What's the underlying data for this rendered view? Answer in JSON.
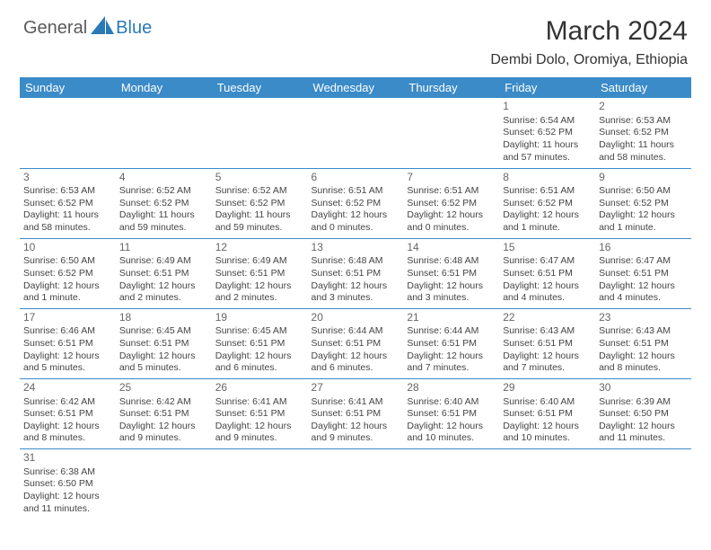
{
  "brand": {
    "part1": "General",
    "part2": "Blue"
  },
  "title": "March 2024",
  "location": "Dembi Dolo, Oromiya, Ethiopia",
  "colors": {
    "header_bg": "#3b8bc8",
    "header_text": "#ffffff",
    "border": "#3b8bc8",
    "body_text": "#444444",
    "daynum": "#666666",
    "brand_gray": "#5a5a5a",
    "brand_blue": "#2a7ab8"
  },
  "day_headers": [
    "Sunday",
    "Monday",
    "Tuesday",
    "Wednesday",
    "Thursday",
    "Friday",
    "Saturday"
  ],
  "weeks": [
    [
      null,
      null,
      null,
      null,
      null,
      {
        "n": "1",
        "sr": "Sunrise: 6:54 AM",
        "ss": "Sunset: 6:52 PM",
        "d1": "Daylight: 11 hours",
        "d2": "and 57 minutes."
      },
      {
        "n": "2",
        "sr": "Sunrise: 6:53 AM",
        "ss": "Sunset: 6:52 PM",
        "d1": "Daylight: 11 hours",
        "d2": "and 58 minutes."
      }
    ],
    [
      {
        "n": "3",
        "sr": "Sunrise: 6:53 AM",
        "ss": "Sunset: 6:52 PM",
        "d1": "Daylight: 11 hours",
        "d2": "and 58 minutes."
      },
      {
        "n": "4",
        "sr": "Sunrise: 6:52 AM",
        "ss": "Sunset: 6:52 PM",
        "d1": "Daylight: 11 hours",
        "d2": "and 59 minutes."
      },
      {
        "n": "5",
        "sr": "Sunrise: 6:52 AM",
        "ss": "Sunset: 6:52 PM",
        "d1": "Daylight: 11 hours",
        "d2": "and 59 minutes."
      },
      {
        "n": "6",
        "sr": "Sunrise: 6:51 AM",
        "ss": "Sunset: 6:52 PM",
        "d1": "Daylight: 12 hours",
        "d2": "and 0 minutes."
      },
      {
        "n": "7",
        "sr": "Sunrise: 6:51 AM",
        "ss": "Sunset: 6:52 PM",
        "d1": "Daylight: 12 hours",
        "d2": "and 0 minutes."
      },
      {
        "n": "8",
        "sr": "Sunrise: 6:51 AM",
        "ss": "Sunset: 6:52 PM",
        "d1": "Daylight: 12 hours",
        "d2": "and 1 minute."
      },
      {
        "n": "9",
        "sr": "Sunrise: 6:50 AM",
        "ss": "Sunset: 6:52 PM",
        "d1": "Daylight: 12 hours",
        "d2": "and 1 minute."
      }
    ],
    [
      {
        "n": "10",
        "sr": "Sunrise: 6:50 AM",
        "ss": "Sunset: 6:52 PM",
        "d1": "Daylight: 12 hours",
        "d2": "and 1 minute."
      },
      {
        "n": "11",
        "sr": "Sunrise: 6:49 AM",
        "ss": "Sunset: 6:51 PM",
        "d1": "Daylight: 12 hours",
        "d2": "and 2 minutes."
      },
      {
        "n": "12",
        "sr": "Sunrise: 6:49 AM",
        "ss": "Sunset: 6:51 PM",
        "d1": "Daylight: 12 hours",
        "d2": "and 2 minutes."
      },
      {
        "n": "13",
        "sr": "Sunrise: 6:48 AM",
        "ss": "Sunset: 6:51 PM",
        "d1": "Daylight: 12 hours",
        "d2": "and 3 minutes."
      },
      {
        "n": "14",
        "sr": "Sunrise: 6:48 AM",
        "ss": "Sunset: 6:51 PM",
        "d1": "Daylight: 12 hours",
        "d2": "and 3 minutes."
      },
      {
        "n": "15",
        "sr": "Sunrise: 6:47 AM",
        "ss": "Sunset: 6:51 PM",
        "d1": "Daylight: 12 hours",
        "d2": "and 4 minutes."
      },
      {
        "n": "16",
        "sr": "Sunrise: 6:47 AM",
        "ss": "Sunset: 6:51 PM",
        "d1": "Daylight: 12 hours",
        "d2": "and 4 minutes."
      }
    ],
    [
      {
        "n": "17",
        "sr": "Sunrise: 6:46 AM",
        "ss": "Sunset: 6:51 PM",
        "d1": "Daylight: 12 hours",
        "d2": "and 5 minutes."
      },
      {
        "n": "18",
        "sr": "Sunrise: 6:45 AM",
        "ss": "Sunset: 6:51 PM",
        "d1": "Daylight: 12 hours",
        "d2": "and 5 minutes."
      },
      {
        "n": "19",
        "sr": "Sunrise: 6:45 AM",
        "ss": "Sunset: 6:51 PM",
        "d1": "Daylight: 12 hours",
        "d2": "and 6 minutes."
      },
      {
        "n": "20",
        "sr": "Sunrise: 6:44 AM",
        "ss": "Sunset: 6:51 PM",
        "d1": "Daylight: 12 hours",
        "d2": "and 6 minutes."
      },
      {
        "n": "21",
        "sr": "Sunrise: 6:44 AM",
        "ss": "Sunset: 6:51 PM",
        "d1": "Daylight: 12 hours",
        "d2": "and 7 minutes."
      },
      {
        "n": "22",
        "sr": "Sunrise: 6:43 AM",
        "ss": "Sunset: 6:51 PM",
        "d1": "Daylight: 12 hours",
        "d2": "and 7 minutes."
      },
      {
        "n": "23",
        "sr": "Sunrise: 6:43 AM",
        "ss": "Sunset: 6:51 PM",
        "d1": "Daylight: 12 hours",
        "d2": "and 8 minutes."
      }
    ],
    [
      {
        "n": "24",
        "sr": "Sunrise: 6:42 AM",
        "ss": "Sunset: 6:51 PM",
        "d1": "Daylight: 12 hours",
        "d2": "and 8 minutes."
      },
      {
        "n": "25",
        "sr": "Sunrise: 6:42 AM",
        "ss": "Sunset: 6:51 PM",
        "d1": "Daylight: 12 hours",
        "d2": "and 9 minutes."
      },
      {
        "n": "26",
        "sr": "Sunrise: 6:41 AM",
        "ss": "Sunset: 6:51 PM",
        "d1": "Daylight: 12 hours",
        "d2": "and 9 minutes."
      },
      {
        "n": "27",
        "sr": "Sunrise: 6:41 AM",
        "ss": "Sunset: 6:51 PM",
        "d1": "Daylight: 12 hours",
        "d2": "and 9 minutes."
      },
      {
        "n": "28",
        "sr": "Sunrise: 6:40 AM",
        "ss": "Sunset: 6:51 PM",
        "d1": "Daylight: 12 hours",
        "d2": "and 10 minutes."
      },
      {
        "n": "29",
        "sr": "Sunrise: 6:40 AM",
        "ss": "Sunset: 6:51 PM",
        "d1": "Daylight: 12 hours",
        "d2": "and 10 minutes."
      },
      {
        "n": "30",
        "sr": "Sunrise: 6:39 AM",
        "ss": "Sunset: 6:50 PM",
        "d1": "Daylight: 12 hours",
        "d2": "and 11 minutes."
      }
    ],
    [
      {
        "n": "31",
        "sr": "Sunrise: 6:38 AM",
        "ss": "Sunset: 6:50 PM",
        "d1": "Daylight: 12 hours",
        "d2": "and 11 minutes."
      },
      null,
      null,
      null,
      null,
      null,
      null
    ]
  ]
}
